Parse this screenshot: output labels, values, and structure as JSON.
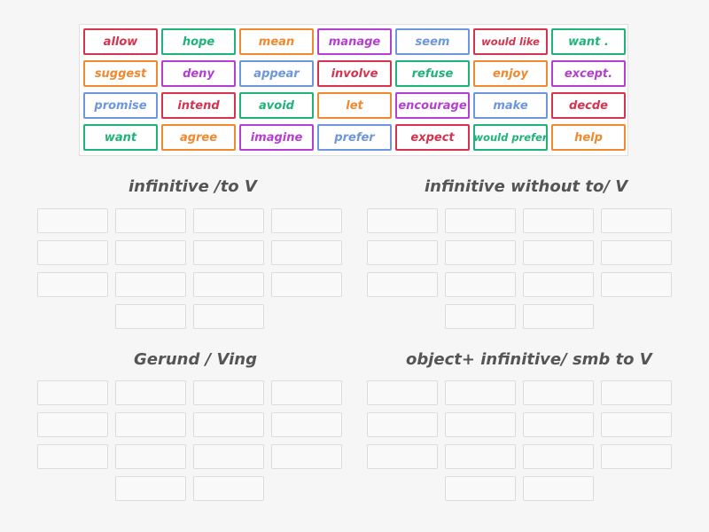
{
  "tiles": [
    {
      "label": "allow",
      "color": "#d6334f"
    },
    {
      "label": "hope",
      "color": "#1fb37a"
    },
    {
      "label": "mean",
      "color": "#f0892f"
    },
    {
      "label": "manage",
      "color": "#b43fd0"
    },
    {
      "label": "seem",
      "color": "#6e96dd"
    },
    {
      "label": "would like",
      "color": "#d6334f"
    },
    {
      "label": "want .",
      "color": "#1fb37a"
    },
    {
      "label": "suggest",
      "color": "#f0892f"
    },
    {
      "label": "deny",
      "color": "#b43fd0"
    },
    {
      "label": "appear",
      "color": "#6e96dd"
    },
    {
      "label": "involve",
      "color": "#d6334f"
    },
    {
      "label": "refuse",
      "color": "#1fb37a"
    },
    {
      "label": "enjoy",
      "color": "#f0892f"
    },
    {
      "label": "except.",
      "color": "#b43fd0"
    },
    {
      "label": "promise",
      "color": "#6e96dd"
    },
    {
      "label": "intend",
      "color": "#d6334f"
    },
    {
      "label": "avoid",
      "color": "#1fb37a"
    },
    {
      "label": "let",
      "color": "#f0892f"
    },
    {
      "label": "encourage",
      "color": "#b43fd0"
    },
    {
      "label": "make",
      "color": "#6e96dd"
    },
    {
      "label": "decde",
      "color": "#d6334f"
    },
    {
      "label": "want",
      "color": "#1fb37a"
    },
    {
      "label": "agree",
      "color": "#f0892f"
    },
    {
      "label": "imagine",
      "color": "#b43fd0"
    },
    {
      "label": "prefer",
      "color": "#6e96dd"
    },
    {
      "label": "expect",
      "color": "#d6334f"
    },
    {
      "label": "would prefer",
      "color": "#1fb37a"
    },
    {
      "label": "help",
      "color": "#f0892f"
    }
  ],
  "groups": [
    {
      "title": "infinitive /to V"
    },
    {
      "title": "infinitive without to/ V"
    },
    {
      "title": "Gerund / Ving"
    },
    {
      "title": "object+ infinitive/ smb to V"
    }
  ]
}
